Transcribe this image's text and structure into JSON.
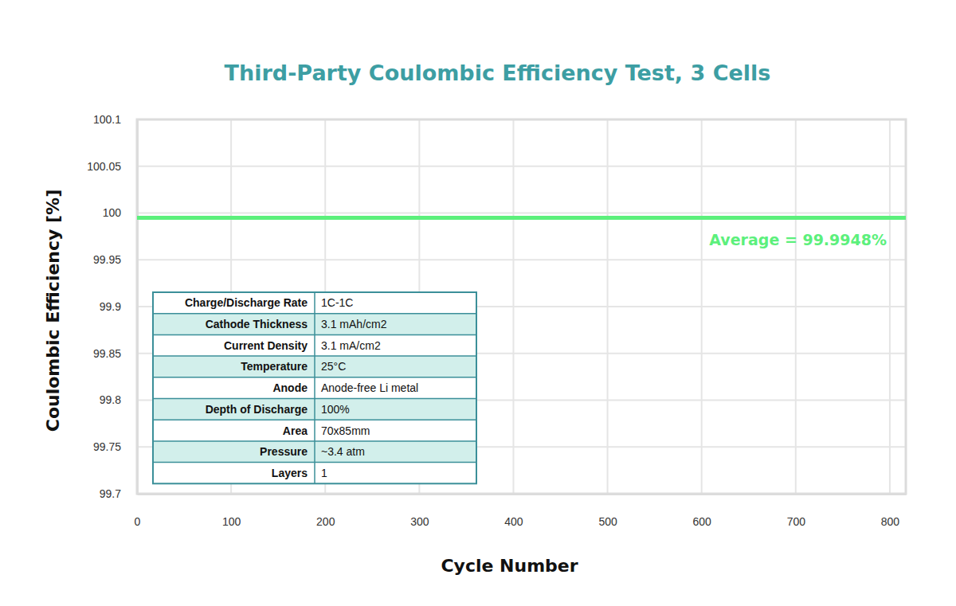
{
  "chart_data": {
    "type": "line",
    "title": "Third-Party Coulombic Efficiency Test, 3 Cells",
    "x_label": "Cycle Number",
    "y_label": "Coulombic Efficiency [%]",
    "x": [
      0,
      817
    ],
    "values": [
      99.9948,
      99.9948
    ],
    "color": "#5cf07c",
    "xlim": [
      0,
      817
    ],
    "xticks": [
      0,
      100,
      200,
      300,
      400,
      500,
      600,
      700,
      800
    ],
    "ylim": [
      99.7,
      100.1
    ],
    "yticks": [
      99.7,
      99.75,
      99.8,
      99.85,
      99.9,
      99.95,
      100,
      100.05,
      100.1
    ],
    "grid": true,
    "annotations": [
      "Average = 99.9948%"
    ],
    "table": {
      "rows": [
        [
          "Charge/Discharge Rate",
          "1C-1C"
        ],
        [
          "Cathode Thickness",
          "3.1 mAh/cm2"
        ],
        [
          "Current Density",
          "3.1 mA/cm2"
        ],
        [
          "Temperature",
          "25°C"
        ],
        [
          "Anode",
          "Anode-free Li metal"
        ],
        [
          "Depth of Discharge",
          "100%"
        ],
        [
          "Area",
          "70x85mm"
        ],
        [
          "Pressure",
          "~3.4 atm"
        ],
        [
          "Layers",
          "1"
        ]
      ]
    }
  }
}
